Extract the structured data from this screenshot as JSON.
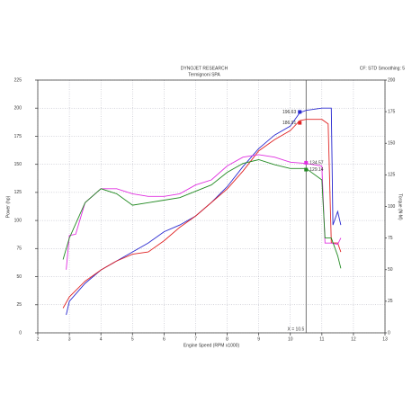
{
  "chart_data": {
    "type": "line",
    "title": "DYNOJET RESEARCH",
    "subtitle": "Termignoni SPA",
    "corner_note": "CF: STD Smoothing: 5",
    "x_label": "Engine Speed (RPM x1000)",
    "y_label": "Power (hp)",
    "y2_label": "Torque (N·M)",
    "xlim": [
      2,
      13
    ],
    "xticks": [
      2,
      3,
      4,
      5,
      6,
      7,
      8,
      9,
      10,
      11,
      12,
      13
    ],
    "ylim": [
      0,
      225
    ],
    "yticks": [
      0,
      25,
      50,
      75,
      100,
      125,
      150,
      175,
      200,
      225
    ],
    "y2lim": [
      0,
      200
    ],
    "y2ticks": [
      0,
      25,
      50,
      75,
      100,
      125,
      150,
      175,
      200
    ],
    "grid": true,
    "cursor": {
      "x": 10.5,
      "label": "X = 10.5"
    },
    "series": [
      {
        "name": null,
        "color": "#2a2ad0",
        "axis": "y",
        "x": [
          2.9,
          3.0,
          3.5,
          4.0,
          4.5,
          5.0,
          5.5,
          6.0,
          6.5,
          7.0,
          7.5,
          8.0,
          8.5,
          9.0,
          9.5,
          10.0,
          10.3,
          10.5,
          11.0,
          11.3,
          11.35,
          11.5,
          11.6
        ],
        "values": [
          16,
          28,
          44,
          56,
          64,
          72,
          80,
          90,
          96,
          104,
          116,
          130,
          148,
          164,
          176,
          184,
          196,
          198,
          200,
          200,
          96,
          108,
          96
        ]
      },
      {
        "name": null,
        "color": "#e02424",
        "axis": "y",
        "x": [
          2.8,
          3.0,
          3.5,
          4.0,
          4.5,
          5.0,
          5.5,
          6.0,
          6.5,
          7.0,
          7.5,
          8.0,
          8.5,
          9.0,
          9.5,
          10.0,
          10.3,
          10.5,
          11.0,
          11.2,
          11.3,
          11.5,
          11.6
        ],
        "values": [
          22,
          32,
          46,
          56,
          64,
          70,
          72,
          82,
          94,
          104,
          116,
          128,
          144,
          162,
          172,
          180,
          189,
          190,
          190,
          186,
          80,
          80,
          72
        ]
      },
      {
        "name": null,
        "color": "#e030e0",
        "axis": "y2",
        "x": [
          2.9,
          3.0,
          3.2,
          3.5,
          4.0,
          4.5,
          5.0,
          5.5,
          6.0,
          6.5,
          7.0,
          7.5,
          8.0,
          8.5,
          9.0,
          9.5,
          10.0,
          10.5,
          11.0,
          11.1,
          11.3,
          11.5,
          11.6
        ],
        "values": [
          50,
          77,
          78,
          103,
          114,
          114,
          110,
          108,
          108,
          110,
          117,
          121,
          132,
          139,
          141,
          139,
          135,
          134,
          132,
          71,
          71,
          70,
          75
        ]
      },
      {
        "name": null,
        "color": "#228a22",
        "axis": "y2",
        "x": [
          2.8,
          3.0,
          3.5,
          4.0,
          4.5,
          5.0,
          5.5,
          6.0,
          6.5,
          7.0,
          7.5,
          8.0,
          8.5,
          9.0,
          9.5,
          10.0,
          10.5,
          11.0,
          11.1,
          11.3,
          11.5,
          11.6
        ],
        "values": [
          58,
          75,
          103,
          114,
          110,
          101,
          103,
          105,
          107,
          112,
          117,
          127,
          134,
          137,
          133,
          130,
          130,
          121,
          75,
          75,
          61,
          51
        ]
      }
    ],
    "annotations": [
      {
        "text": "196.63",
        "x": 10.3,
        "y": 196.63,
        "axis": "y",
        "color": "#2a2ad0"
      },
      {
        "text": "186.91",
        "x": 10.3,
        "y": 186.91,
        "axis": "y",
        "color": "#e02424"
      },
      {
        "text": "134.57",
        "x": 10.5,
        "y": 134.57,
        "axis": "y2",
        "color": "#e030e0"
      },
      {
        "text": "129.14",
        "x": 10.5,
        "y": 129.14,
        "axis": "y2",
        "color": "#228a22"
      }
    ]
  }
}
